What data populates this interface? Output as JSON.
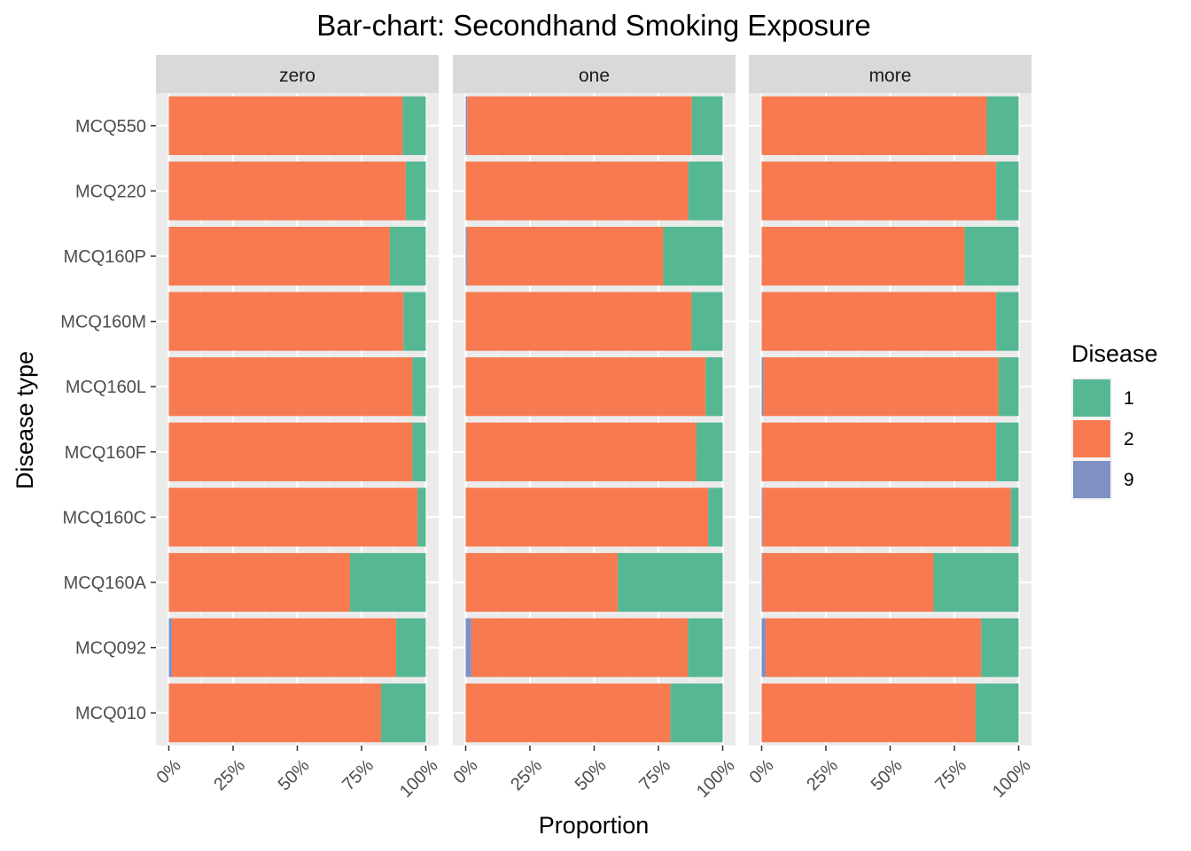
{
  "chart_data": {
    "type": "bar",
    "orientation": "horizontal",
    "stacked": "fill",
    "title": "Bar-chart: Secondhand Smoking Exposure",
    "xlabel": "Proportion",
    "ylabel": "Disease type",
    "xlim": [
      0,
      1
    ],
    "x_ticks": [
      "0%",
      "25%",
      "50%",
      "75%",
      "100%"
    ],
    "grid": true,
    "legend": {
      "title": "Disease",
      "position": "right",
      "items": [
        {
          "label": "1",
          "color": "#55B892"
        },
        {
          "label": "2",
          "color": "#F77A51"
        },
        {
          "label": "9",
          "color": "#7F90C4"
        }
      ]
    },
    "categories": [
      "MCQ550",
      "MCQ220",
      "MCQ160P",
      "MCQ160M",
      "MCQ160L",
      "MCQ160F",
      "MCQ160C",
      "MCQ160A",
      "MCQ092",
      "MCQ010"
    ],
    "facets": [
      {
        "label": "zero",
        "series": [
          {
            "name": "9",
            "values": [
              0.0,
              0.0,
              0.0,
              0.0,
              0.0,
              0.0,
              0.0,
              0.0,
              0.012,
              0.0
            ]
          },
          {
            "name": "2",
            "values": [
              0.91,
              0.922,
              0.86,
              0.913,
              0.948,
              0.948,
              0.968,
              0.705,
              0.873,
              0.826
            ]
          },
          {
            "name": "1",
            "values": [
              0.09,
              0.078,
              0.14,
              0.087,
              0.052,
              0.052,
              0.032,
              0.295,
              0.115,
              0.174
            ]
          }
        ]
      },
      {
        "label": "one",
        "series": [
          {
            "name": "9",
            "values": [
              0.006,
              0.0,
              0.005,
              0.0,
              0.0,
              0.0,
              0.0,
              0.0,
              0.022,
              0.0
            ]
          },
          {
            "name": "2",
            "values": [
              0.874,
              0.866,
              0.764,
              0.879,
              0.934,
              0.898,
              0.944,
              0.592,
              0.843,
              0.797
            ]
          },
          {
            "name": "1",
            "values": [
              0.12,
              0.134,
              0.231,
              0.121,
              0.066,
              0.102,
              0.056,
              0.408,
              0.135,
              0.203
            ]
          }
        ]
      },
      {
        "label": "more",
        "series": [
          {
            "name": "9",
            "values": [
              0.0,
              0.0,
              0.0,
              0.0,
              0.007,
              0.0,
              0.004,
              0.004,
              0.016,
              0.0
            ]
          },
          {
            "name": "2",
            "values": [
              0.876,
              0.913,
              0.79,
              0.913,
              0.915,
              0.913,
              0.966,
              0.665,
              0.838,
              0.833
            ]
          },
          {
            "name": "1",
            "values": [
              0.124,
              0.087,
              0.21,
              0.087,
              0.078,
              0.087,
              0.03,
              0.331,
              0.146,
              0.167
            ]
          }
        ]
      }
    ]
  }
}
